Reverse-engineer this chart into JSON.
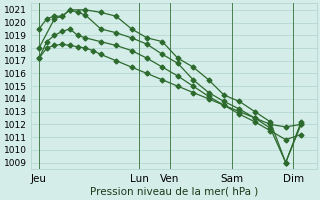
{
  "background_color": "#d4ede8",
  "grid_color": "#b0d4ce",
  "line_color": "#2d6a2d",
  "title": "Pression niveau de la mer( hPa )",
  "ylim": [
    1008.5,
    1021.5
  ],
  "yticks": [
    1009,
    1010,
    1011,
    1012,
    1013,
    1014,
    1015,
    1016,
    1017,
    1018,
    1019,
    1020,
    1021
  ],
  "xlabel_fontsize": 7.5,
  "ylabel_fontsize": 6.5,
  "xtick_labels": [
    "Jeu",
    "Lun",
    "Ven",
    "Sam",
    "Dim"
  ],
  "xtick_positions": [
    0.5,
    7,
    9,
    13,
    17
  ],
  "xlim": [
    0,
    18.5
  ],
  "vlines": [
    0.5,
    7,
    9,
    13,
    17
  ],
  "series1_x": [
    0.5,
    1.0,
    1.5,
    2.0,
    2.5,
    3.0,
    3.5,
    4.0,
    4.5,
    5.5,
    6.5,
    7.5,
    8.5,
    9.5,
    10.5,
    11.5,
    12.5,
    13.5,
    14.5,
    15.5,
    16.5,
    17.5
  ],
  "series1_y": [
    1017.2,
    1018.0,
    1018.2,
    1018.3,
    1018.2,
    1018.1,
    1018.0,
    1017.8,
    1017.5,
    1017.0,
    1016.5,
    1016.0,
    1015.5,
    1015.0,
    1014.5,
    1014.0,
    1013.5,
    1013.0,
    1012.5,
    1012.0,
    1011.8,
    1012.0
  ],
  "series2_x": [
    0.5,
    1.0,
    1.5,
    2.0,
    2.5,
    3.0,
    3.5,
    4.5,
    5.5,
    6.5,
    7.5,
    8.5,
    9.5,
    10.5,
    11.5,
    12.5,
    13.5,
    14.5,
    15.5,
    16.5,
    17.5
  ],
  "series2_y": [
    1019.5,
    1020.3,
    1020.5,
    1020.5,
    1021.0,
    1020.8,
    1020.6,
    1019.5,
    1019.2,
    1018.8,
    1018.3,
    1017.5,
    1016.8,
    1015.5,
    1014.5,
    1013.8,
    1013.2,
    1012.5,
    1011.7,
    1009.0,
    1012.0
  ],
  "series3_x": [
    0.5,
    1.0,
    1.5,
    2.0,
    2.5,
    3.0,
    3.5,
    4.5,
    5.5,
    6.5,
    7.5,
    8.5,
    9.5,
    10.5,
    11.5,
    12.5,
    13.5,
    14.5,
    15.5,
    16.5,
    17.5
  ],
  "series3_y": [
    1017.2,
    1018.5,
    1019.0,
    1019.3,
    1019.5,
    1019.0,
    1018.8,
    1018.5,
    1018.2,
    1017.8,
    1017.2,
    1016.5,
    1015.8,
    1015.0,
    1014.2,
    1013.5,
    1012.8,
    1012.2,
    1011.5,
    1010.8,
    1011.2
  ],
  "series4_x": [
    0.5,
    1.5,
    2.0,
    2.5,
    3.5,
    4.5,
    5.5,
    6.5,
    7.5,
    8.5,
    9.5,
    10.5,
    11.5,
    12.5,
    13.5,
    14.5,
    15.5,
    16.5,
    17.5
  ],
  "series4_y": [
    1018.0,
    1020.3,
    1020.5,
    1021.0,
    1021.0,
    1020.8,
    1020.5,
    1019.5,
    1018.8,
    1018.5,
    1017.2,
    1016.5,
    1015.5,
    1014.3,
    1013.8,
    1013.0,
    1012.2,
    1009.0,
    1012.2
  ]
}
